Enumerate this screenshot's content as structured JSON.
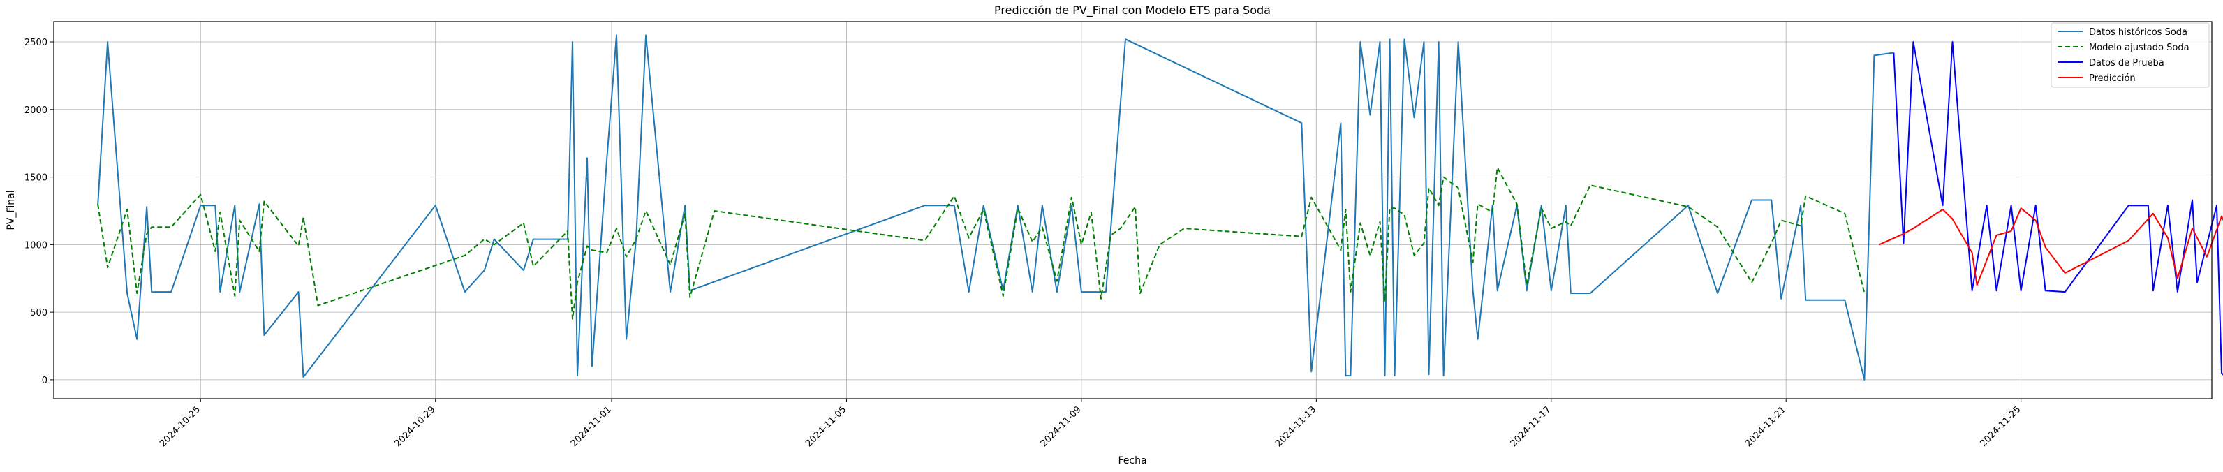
{
  "chart_data": {
    "type": "line",
    "title": "Predicción de PV_Final con Modelo ETS para Soda",
    "xlabel": "Fecha",
    "ylabel": "PV_Final",
    "x_axis": {
      "type": "date",
      "range": [
        "2024-10-22T12:00",
        "2024-11-28T06:00"
      ]
    },
    "ylim": [
      -140,
      2650
    ],
    "x_ticks": [
      "2024-10-25",
      "2024-10-29",
      "2024-11-01",
      "2024-11-05",
      "2024-11-09",
      "2024-11-13",
      "2024-11-17",
      "2024-11-21",
      "2024-11-25"
    ],
    "y_ticks": [
      0,
      500,
      1000,
      1500,
      2000,
      2500
    ],
    "grid": true,
    "legend_position": "upper-right",
    "series": [
      {
        "name": "Datos históricos Soda",
        "color": "#1f77b4",
        "style": "solid",
        "points": [
          [
            "2024-10-23T06:00",
            1290
          ],
          [
            "2024-10-23T10:00",
            2500
          ],
          [
            "2024-10-23T18:00",
            640
          ],
          [
            "2024-10-23T22:00",
            300
          ],
          [
            "2024-10-24T02:00",
            1280
          ],
          [
            "2024-10-24T04:00",
            650
          ],
          [
            "2024-10-24T12:00",
            650
          ],
          [
            "2024-10-25T00:00",
            1290
          ],
          [
            "2024-10-25T06:00",
            1290
          ],
          [
            "2024-10-25T08:00",
            650
          ],
          [
            "2024-10-25T14:00",
            1290
          ],
          [
            "2024-10-25T16:00",
            650
          ],
          [
            "2024-10-26T00:00",
            1300
          ],
          [
            "2024-10-26T02:00",
            330
          ],
          [
            "2024-10-26T16:00",
            650
          ],
          [
            "2024-10-26T18:00",
            20
          ],
          [
            "2024-10-29T00:00",
            1290
          ],
          [
            "2024-10-29T12:00",
            650
          ],
          [
            "2024-10-29T20:00",
            810
          ],
          [
            "2024-10-30T00:00",
            1040
          ],
          [
            "2024-10-30T12:00",
            810
          ],
          [
            "2024-10-30T16:00",
            1040
          ],
          [
            "2024-10-31T06:00",
            1040
          ],
          [
            "2024-10-31T08:00",
            2500
          ],
          [
            "2024-10-31T10:00",
            30
          ],
          [
            "2024-10-31T14:00",
            1640
          ],
          [
            "2024-10-31T16:00",
            100
          ],
          [
            "2024-10-31T22:00",
            1620
          ],
          [
            "2024-11-01T02:00",
            2550
          ],
          [
            "2024-11-01T06:00",
            300
          ],
          [
            "2024-11-01T10:00",
            1040
          ],
          [
            "2024-11-01T14:00",
            2550
          ],
          [
            "2024-11-02T00:00",
            650
          ],
          [
            "2024-11-02T06:00",
            1290
          ],
          [
            "2024-11-02T08:00",
            660
          ],
          [
            "2024-11-06T08:00",
            1290
          ],
          [
            "2024-11-06T20:00",
            1290
          ],
          [
            "2024-11-07T02:00",
            650
          ],
          [
            "2024-11-07T08:00",
            1290
          ],
          [
            "2024-11-07T16:00",
            660
          ],
          [
            "2024-11-07T22:00",
            1290
          ],
          [
            "2024-11-08T04:00",
            650
          ],
          [
            "2024-11-08T08:00",
            1290
          ],
          [
            "2024-11-08T14:00",
            650
          ],
          [
            "2024-11-08T20:00",
            1290
          ],
          [
            "2024-11-09T00:00",
            650
          ],
          [
            "2024-11-09T10:00",
            650
          ],
          [
            "2024-11-09T18:00",
            2520
          ],
          [
            "2024-11-12T18:00",
            1900
          ],
          [
            "2024-11-12T22:00",
            60
          ],
          [
            "2024-11-13T10:00",
            1900
          ],
          [
            "2024-11-13T12:00",
            30
          ],
          [
            "2024-11-13T14:00",
            30
          ],
          [
            "2024-11-13T18:00",
            2500
          ],
          [
            "2024-11-13T22:00",
            1960
          ],
          [
            "2024-11-14T02:00",
            2500
          ],
          [
            "2024-11-14T04:00",
            30
          ],
          [
            "2024-11-14T06:00",
            2520
          ],
          [
            "2024-11-14T08:00",
            30
          ],
          [
            "2024-11-14T12:00",
            2520
          ],
          [
            "2024-11-14T16:00",
            1940
          ],
          [
            "2024-11-14T20:00",
            2500
          ],
          [
            "2024-11-14T22:00",
            40
          ],
          [
            "2024-11-15T02:00",
            2500
          ],
          [
            "2024-11-15T04:00",
            30
          ],
          [
            "2024-11-15T10:00",
            2500
          ],
          [
            "2024-11-15T16:00",
            660
          ],
          [
            "2024-11-15T18:00",
            300
          ],
          [
            "2024-11-16T00:00",
            1290
          ],
          [
            "2024-11-16T02:00",
            660
          ],
          [
            "2024-11-16T10:00",
            1290
          ],
          [
            "2024-11-16T14:00",
            660
          ],
          [
            "2024-11-16T20:00",
            1290
          ],
          [
            "2024-11-17T00:00",
            660
          ],
          [
            "2024-11-17T06:00",
            1290
          ],
          [
            "2024-11-17T08:00",
            640
          ],
          [
            "2024-11-17T16:00",
            640
          ],
          [
            "2024-11-19T08:00",
            1290
          ],
          [
            "2024-11-19T20:00",
            640
          ],
          [
            "2024-11-20T10:00",
            1330
          ],
          [
            "2024-11-20T18:00",
            1330
          ],
          [
            "2024-11-20T22:00",
            600
          ],
          [
            "2024-11-21T06:00",
            1290
          ],
          [
            "2024-11-21T08:00",
            590
          ],
          [
            "2024-11-22T00:00",
            590
          ],
          [
            "2024-11-22T08:00",
            0
          ],
          [
            "2024-11-22T12:00",
            2400
          ],
          [
            "2024-11-22T20:00",
            2420
          ]
        ]
      },
      {
        "name": "Modelo ajustado Soda",
        "color": "#008000",
        "style": "dashed",
        "points": [
          [
            "2024-10-23T06:00",
            1300
          ],
          [
            "2024-10-23T10:00",
            830
          ],
          [
            "2024-10-23T18:00",
            1260
          ],
          [
            "2024-10-23T22:00",
            640
          ],
          [
            "2024-10-24T02:00",
            1080
          ],
          [
            "2024-10-24T04:00",
            1130
          ],
          [
            "2024-10-24T12:00",
            1130
          ],
          [
            "2024-10-25T00:00",
            1370
          ],
          [
            "2024-10-25T06:00",
            950
          ],
          [
            "2024-10-25T08:00",
            1240
          ],
          [
            "2024-10-25T14:00",
            620
          ],
          [
            "2024-10-25T16:00",
            1180
          ],
          [
            "2024-10-26T00:00",
            950
          ],
          [
            "2024-10-26T02:00",
            1320
          ],
          [
            "2024-10-26T16:00",
            990
          ],
          [
            "2024-10-26T18:00",
            1200
          ],
          [
            "2024-10-27T00:00",
            550
          ],
          [
            "2024-10-29T12:00",
            920
          ],
          [
            "2024-10-29T20:00",
            1040
          ],
          [
            "2024-10-30T00:00",
            1000
          ],
          [
            "2024-10-30T12:00",
            1160
          ],
          [
            "2024-10-30T16:00",
            840
          ],
          [
            "2024-10-31T06:00",
            1100
          ],
          [
            "2024-10-31T08:00",
            450
          ],
          [
            "2024-10-31T10:00",
            720
          ],
          [
            "2024-10-31T14:00",
            990
          ],
          [
            "2024-10-31T16:00",
            960
          ],
          [
            "2024-10-31T22:00",
            940
          ],
          [
            "2024-11-01T02:00",
            1120
          ],
          [
            "2024-11-01T06:00",
            910
          ],
          [
            "2024-11-01T10:00",
            1040
          ],
          [
            "2024-11-01T14:00",
            1250
          ],
          [
            "2024-11-02T00:00",
            850
          ],
          [
            "2024-11-02T06:00",
            1230
          ],
          [
            "2024-11-02T08:00",
            610
          ],
          [
            "2024-11-02T18:00",
            1250
          ],
          [
            "2024-11-06T08:00",
            1030
          ],
          [
            "2024-11-06T20:00",
            1360
          ],
          [
            "2024-11-07T02:00",
            1050
          ],
          [
            "2024-11-07T08:00",
            1260
          ],
          [
            "2024-11-07T16:00",
            620
          ],
          [
            "2024-11-07T22:00",
            1270
          ],
          [
            "2024-11-08T04:00",
            1020
          ],
          [
            "2024-11-08T08:00",
            1130
          ],
          [
            "2024-11-08T14:00",
            730
          ],
          [
            "2024-11-08T20:00",
            1350
          ],
          [
            "2024-11-09T00:00",
            1000
          ],
          [
            "2024-11-09T04:00",
            1240
          ],
          [
            "2024-11-09T08:00",
            600
          ],
          [
            "2024-11-09T12:00",
            1070
          ],
          [
            "2024-11-09T16:00",
            1120
          ],
          [
            "2024-11-09T22:00",
            1280
          ],
          [
            "2024-11-10T00:00",
            640
          ],
          [
            "2024-11-10T08:00",
            1000
          ],
          [
            "2024-11-10T18:00",
            1120
          ],
          [
            "2024-11-12T18:00",
            1060
          ],
          [
            "2024-11-12T22:00",
            1350
          ],
          [
            "2024-11-13T10:00",
            960
          ],
          [
            "2024-11-13T12:00",
            1260
          ],
          [
            "2024-11-13T14:00",
            650
          ],
          [
            "2024-11-13T18:00",
            1160
          ],
          [
            "2024-11-13T22:00",
            920
          ],
          [
            "2024-11-14T02:00",
            1170
          ],
          [
            "2024-11-14T04:00",
            580
          ],
          [
            "2024-11-14T06:00",
            1270
          ],
          [
            "2024-11-14T08:00",
            1270
          ],
          [
            "2024-11-14T12:00",
            1220
          ],
          [
            "2024-11-14T16:00",
            920
          ],
          [
            "2024-11-14T20:00",
            1010
          ],
          [
            "2024-11-14T22:00",
            1420
          ],
          [
            "2024-11-15T02:00",
            1290
          ],
          [
            "2024-11-15T04:00",
            1500
          ],
          [
            "2024-11-15T10:00",
            1420
          ],
          [
            "2024-11-15T16:00",
            870
          ],
          [
            "2024-11-15T18:00",
            1300
          ],
          [
            "2024-11-16T00:00",
            1240
          ],
          [
            "2024-11-16T02:00",
            1570
          ],
          [
            "2024-11-16T10:00",
            1300
          ],
          [
            "2024-11-16T14:00",
            700
          ],
          [
            "2024-11-16T20:00",
            1270
          ],
          [
            "2024-11-17T00:00",
            1120
          ],
          [
            "2024-11-17T06:00",
            1170
          ],
          [
            "2024-11-17T08:00",
            1140
          ],
          [
            "2024-11-17T16:00",
            1440
          ],
          [
            "2024-11-19T08:00",
            1280
          ],
          [
            "2024-11-19T20:00",
            1130
          ],
          [
            "2024-11-20T10:00",
            720
          ],
          [
            "2024-11-20T18:00",
            1010
          ],
          [
            "2024-11-20T22:00",
            1180
          ],
          [
            "2024-11-21T06:00",
            1140
          ],
          [
            "2024-11-21T08:00",
            1360
          ],
          [
            "2024-11-22T00:00",
            1230
          ],
          [
            "2024-11-22T08:00",
            640
          ]
        ]
      },
      {
        "name": "Datos de Prueba",
        "color": "#0000ff",
        "style": "solid",
        "points": [
          [
            "2024-11-22T20:00",
            2420
          ],
          [
            "2024-11-23T00:00",
            1010
          ],
          [
            "2024-11-23T04:00",
            2500
          ],
          [
            "2024-11-23T16:00",
            1290
          ],
          [
            "2024-11-23T20:00",
            2500
          ],
          [
            "2024-11-24T04:00",
            660
          ],
          [
            "2024-11-24T10:00",
            1290
          ],
          [
            "2024-11-24T14:00",
            660
          ],
          [
            "2024-11-24T20:00",
            1290
          ],
          [
            "2024-11-25T00:00",
            660
          ],
          [
            "2024-11-25T06:00",
            1290
          ],
          [
            "2024-11-25T10:00",
            660
          ],
          [
            "2024-11-25T18:00",
            650
          ],
          [
            "2024-11-26T20:00",
            1290
          ],
          [
            "2024-11-27T04:00",
            1290
          ],
          [
            "2024-11-27T06:00",
            660
          ],
          [
            "2024-11-27T12:00",
            1290
          ],
          [
            "2024-11-27T16:00",
            650
          ],
          [
            "2024-11-27T22:00",
            1330
          ],
          [
            "2024-11-28T00:00",
            720
          ],
          [
            "2024-11-28T08:00",
            1290
          ],
          [
            "2024-11-28T10:00",
            50
          ],
          [
            "2024-11-28T12:00",
            10
          ],
          [
            "2024-11-28T20:00",
            1290
          ],
          [
            "2024-11-28T21:00",
            650
          ]
        ]
      },
      {
        "name": "Predicción",
        "color": "#ff0000",
        "style": "solid",
        "points": [
          [
            "2024-11-22T14:00",
            1000
          ],
          [
            "2024-11-23T00:00",
            1080
          ],
          [
            "2024-11-23T04:00",
            1120
          ],
          [
            "2024-11-23T16:00",
            1260
          ],
          [
            "2024-11-23T20:00",
            1190
          ],
          [
            "2024-11-24T04:00",
            940
          ],
          [
            "2024-11-24T06:00",
            700
          ],
          [
            "2024-11-24T14:00",
            1070
          ],
          [
            "2024-11-24T20:00",
            1100
          ],
          [
            "2024-11-25T00:00",
            1270
          ],
          [
            "2024-11-25T06:00",
            1180
          ],
          [
            "2024-11-25T10:00",
            980
          ],
          [
            "2024-11-25T18:00",
            790
          ],
          [
            "2024-11-26T20:00",
            1030
          ],
          [
            "2024-11-27T06:00",
            1230
          ],
          [
            "2024-11-27T12:00",
            1050
          ],
          [
            "2024-11-27T16:00",
            750
          ],
          [
            "2024-11-27T22:00",
            1120
          ],
          [
            "2024-11-28T04:00",
            910
          ],
          [
            "2024-11-28T10:00",
            1210
          ],
          [
            "2024-11-28T14:00",
            1050
          ],
          [
            "2024-11-28T20:00",
            940
          ],
          [
            "2024-11-28T21:00",
            650
          ]
        ]
      }
    ]
  }
}
